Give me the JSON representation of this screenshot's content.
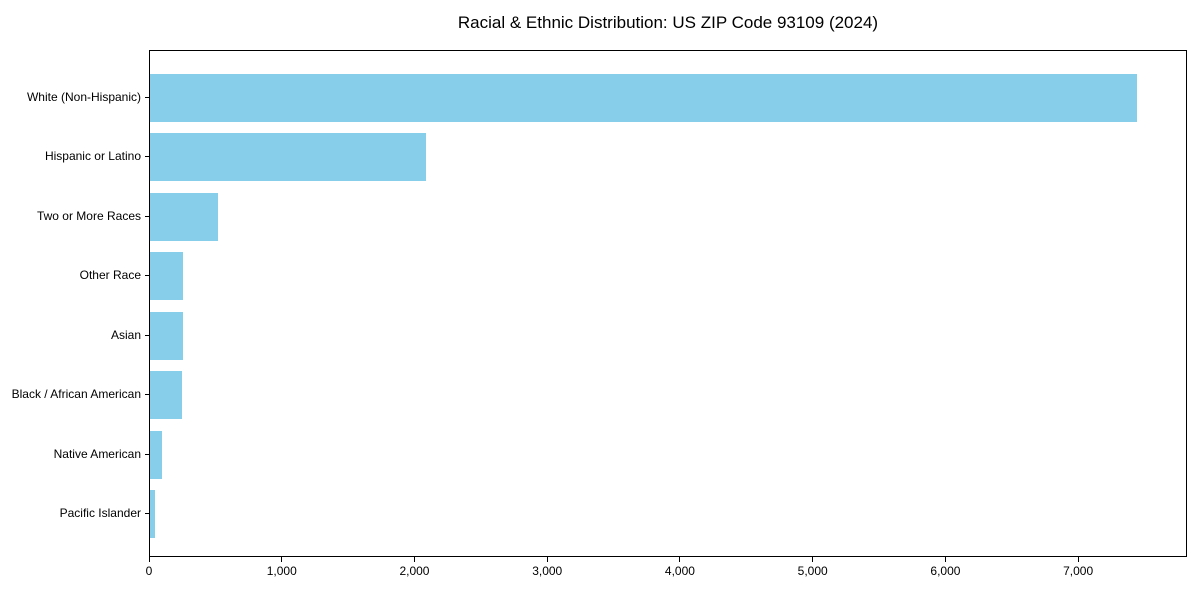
{
  "figure": {
    "background_color": "#ffffff",
    "text_color": "#000000",
    "spine_color": "#000000"
  },
  "chart_data": {
    "type": "bar",
    "orientation": "horizontal",
    "title": "Racial & Ethnic Distribution: US ZIP Code 93109 (2024)",
    "categories": [
      "White (Non-Hispanic)",
      "Hispanic or Latino",
      "Two or More Races",
      "Other Race",
      "Asian",
      "Black / African American",
      "Native American",
      "Pacific Islander"
    ],
    "values": [
      7435,
      2080,
      510,
      250,
      245,
      240,
      90,
      40
    ],
    "bar_color": "#87ceeb",
    "xlabel": "",
    "ylabel": "",
    "xlim": [
      0,
      7820
    ],
    "x_ticks": [
      0,
      1000,
      2000,
      3000,
      4000,
      5000,
      6000,
      7000
    ],
    "x_tick_labels": [
      "0",
      "1,000",
      "2,000",
      "3,000",
      "4,000",
      "5,000",
      "6,000",
      "7,000"
    ],
    "grid": false,
    "legend": null
  }
}
